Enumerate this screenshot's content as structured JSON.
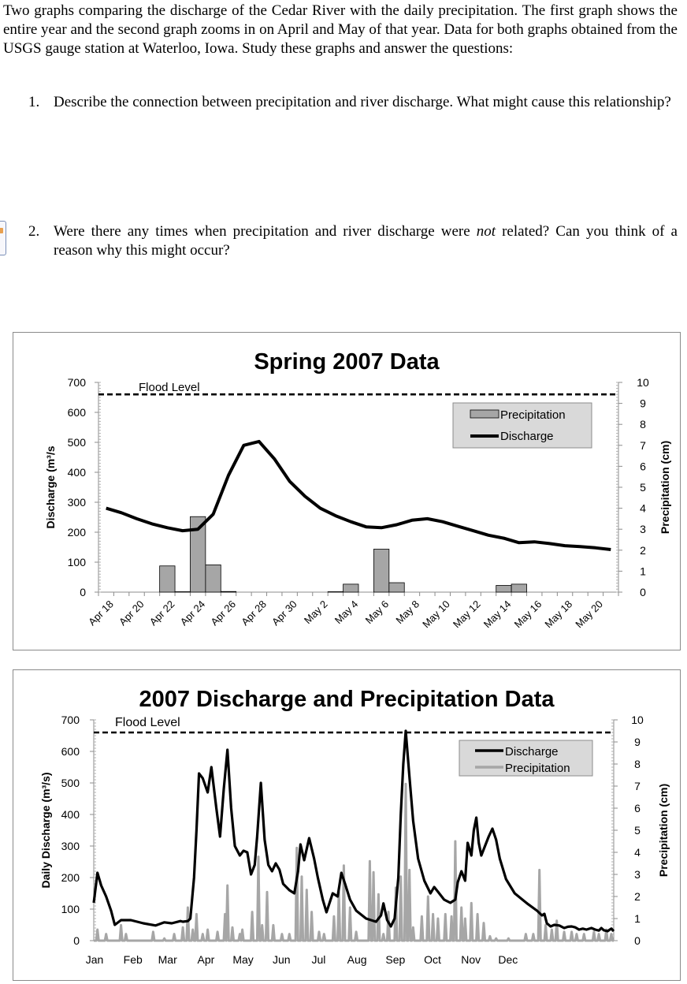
{
  "intro": {
    "text": "Two graphs comparing the discharge of the Cedar River with the daily precipitation. The first graph shows the entire year and the second graph zooms in on April and May of that year. Data for both graphs obtained from the USGS gauge station at Waterloo, Iowa. Study these graphs and answer the questions:"
  },
  "questions": [
    {
      "number": "1.",
      "text": "Describe the connection between precipitation and river discharge. What might cause this relationship?"
    },
    {
      "number": "2.",
      "text_before": "Were there any times when precipitation and river discharge were ",
      "text_emphasis": "not",
      "text_after": " related? Can you think of a reason why this might occur?"
    }
  ],
  "chart_data": [
    {
      "type": "bar+line",
      "title": "Spring 2007 Data",
      "ylabel_left": "Discharge (m³/s",
      "ylabel_right": "Precipitation (cm)",
      "yticks_left": [
        "0",
        "100",
        "200",
        "300",
        "400",
        "500",
        "600",
        "700"
      ],
      "yticks_right": [
        "0",
        "1",
        "2",
        "3",
        "4",
        "5",
        "6",
        "7",
        "8",
        "9",
        "10"
      ],
      "ylim_left": [
        0,
        700
      ],
      "ylim_right": [
        0,
        10
      ],
      "flood_level_label": "Flood Level",
      "flood_level": 660,
      "x_tick_labels": [
        "Apr 18",
        "Apr 20",
        "Apr 22",
        "Apr 24",
        "Apr 26",
        "Apr 28",
        "Apr 30",
        "May 2",
        "May 4",
        "May 6",
        "May 8",
        "May 10",
        "May 12",
        "May 14",
        "May 16",
        "May 18",
        "May 20"
      ],
      "days": [
        "Apr 18",
        "Apr 19",
        "Apr 20",
        "Apr 21",
        "Apr 22",
        "Apr 23",
        "Apr 24",
        "Apr 25",
        "Apr 26",
        "Apr 27",
        "Apr 28",
        "Apr 29",
        "Apr 30",
        "May 1",
        "May 2",
        "May 3",
        "May 4",
        "May 5",
        "May 6",
        "May 7",
        "May 8",
        "May 9",
        "May 10",
        "May 11",
        "May 12",
        "May 13",
        "May 14",
        "May 15",
        "May 16",
        "May 17",
        "May 18",
        "May 19",
        "May 20",
        "May 21"
      ],
      "legend": [
        "Precipitation",
        "Discharge"
      ],
      "legend_position": "top-right",
      "series": [
        {
          "name": "Precipitation",
          "kind": "bar",
          "axis": "right",
          "values": [
            0,
            0,
            0,
            0,
            1.25,
            0.02,
            3.6,
            1.3,
            0.03,
            0,
            0,
            0,
            0,
            0,
            0,
            0.02,
            0.38,
            0,
            2.05,
            0.45,
            0,
            0,
            0,
            0,
            0,
            0,
            0.32,
            0.38,
            0,
            0,
            0,
            0,
            0,
            0
          ]
        },
        {
          "name": "Discharge",
          "kind": "line",
          "axis": "left",
          "values": [
            280,
            265,
            245,
            228,
            215,
            205,
            210,
            260,
            390,
            490,
            503,
            445,
            370,
            320,
            280,
            255,
            235,
            218,
            215,
            225,
            240,
            245,
            235,
            220,
            205,
            190,
            180,
            165,
            168,
            162,
            155,
            152,
            148,
            142
          ]
        }
      ]
    },
    {
      "type": "line",
      "title": "2007 Discharge and Precipitation Data",
      "ylabel_left": "Daily Discharge (m³/s)",
      "ylabel_right": "Precipitation (cm)",
      "yticks_left": [
        "0",
        "100",
        "200",
        "300",
        "400",
        "500",
        "600",
        "700"
      ],
      "yticks_right": [
        "0",
        "1",
        "2",
        "3",
        "4",
        "5",
        "6",
        "7",
        "8",
        "9",
        "10"
      ],
      "ylim_left": [
        0,
        700
      ],
      "ylim_right": [
        0,
        10
      ],
      "flood_level_label": "Flood Level",
      "flood_level": 660,
      "x_tick_labels": [
        "Jan",
        "Feb",
        "Mar",
        "Apr",
        "May",
        "Jun",
        "Jul",
        "Aug",
        "Sep",
        "Oct",
        "Nov",
        "Dec"
      ],
      "legend": [
        "Discharge",
        "Precipitation"
      ],
      "legend_position": "top-right",
      "series": [
        {
          "name": "Discharge",
          "axis": "left",
          "points": [
            [
              0,
              120
            ],
            [
              3,
              215
            ],
            [
              6,
              175
            ],
            [
              10,
              140
            ],
            [
              14,
              95
            ],
            [
              17,
              50
            ],
            [
              22,
              65
            ],
            [
              30,
              65
            ],
            [
              40,
              55
            ],
            [
              50,
              48
            ],
            [
              57,
              58
            ],
            [
              63,
              55
            ],
            [
              70,
              62
            ],
            [
              72,
              60
            ],
            [
              76,
              62
            ],
            [
              78,
              70
            ],
            [
              81,
              200
            ],
            [
              83,
              350
            ],
            [
              85,
              530
            ],
            [
              88,
              515
            ],
            [
              92,
              470
            ],
            [
              95,
              550
            ],
            [
              99,
              420
            ],
            [
              102,
              330
            ],
            [
              105,
              480
            ],
            [
              108,
              605
            ],
            [
              111,
              420
            ],
            [
              114,
              300
            ],
            [
              118,
              270
            ],
            [
              121,
              285
            ],
            [
              124,
              280
            ],
            [
              127,
              210
            ],
            [
              130,
              240
            ],
            [
              132,
              330
            ],
            [
              135,
              500
            ],
            [
              138,
              320
            ],
            [
              141,
              240
            ],
            [
              144,
              220
            ],
            [
              147,
              245
            ],
            [
              150,
              225
            ],
            [
              153,
              180
            ],
            [
              158,
              160
            ],
            [
              162,
              150
            ],
            [
              165,
              220
            ],
            [
              167,
              305
            ],
            [
              170,
              255
            ],
            [
              174,
              325
            ],
            [
              178,
              260
            ],
            [
              181,
              200
            ],
            [
              185,
              130
            ],
            [
              188,
              90
            ],
            [
              193,
              150
            ],
            [
              197,
              140
            ],
            [
              200,
              215
            ],
            [
              203,
              180
            ],
            [
              207,
              130
            ],
            [
              212,
              95
            ],
            [
              220,
              70
            ],
            [
              228,
              60
            ],
            [
              232,
              80
            ],
            [
              234,
              118
            ],
            [
              237,
              65
            ],
            [
              240,
              45
            ],
            [
              243,
              70
            ],
            [
              246,
              200
            ],
            [
              248,
              400
            ],
            [
              250,
              560
            ],
            [
              252,
              665
            ],
            [
              255,
              520
            ],
            [
              258,
              380
            ],
            [
              262,
              260
            ],
            [
              267,
              190
            ],
            [
              272,
              150
            ],
            [
              275,
              170
            ],
            [
              278,
              155
            ],
            [
              283,
              130
            ],
            [
              288,
              120
            ],
            [
              292,
              130
            ],
            [
              294,
              185
            ],
            [
              297,
              220
            ],
            [
              300,
              190
            ],
            [
              302,
              310
            ],
            [
              305,
              270
            ],
            [
              307,
              350
            ],
            [
              309,
              390
            ],
            [
              311,
              310
            ],
            [
              313,
              270
            ],
            [
              316,
              300
            ],
            [
              319,
              330
            ],
            [
              322,
              355
            ],
            [
              325,
              320
            ],
            [
              328,
              260
            ],
            [
              333,
              195
            ],
            [
              340,
              150
            ],
            [
              350,
              118
            ],
            [
              358,
              95
            ],
            [
              362,
              80
            ],
            [
              364,
              85
            ],
            [
              366,
              55
            ],
            [
              369,
              45
            ],
            [
              372,
              50
            ],
            [
              376,
              48
            ],
            [
              380,
              40
            ],
            [
              383,
              44
            ],
            [
              386,
              45
            ],
            [
              389,
              42
            ],
            [
              392,
              35
            ],
            [
              395,
              38
            ],
            [
              398,
              35
            ],
            [
              402,
              40
            ],
            [
              405,
              35
            ],
            [
              408,
              32
            ],
            [
              410,
              40
            ],
            [
              412,
              33
            ],
            [
              415,
              30
            ],
            [
              418,
              38
            ],
            [
              420,
              30
            ]
          ]
        },
        {
          "name": "Precipitation",
          "axis": "right",
          "spikes": [
            [
              3,
              0.5
            ],
            [
              10,
              0.3
            ],
            [
              22,
              0.7
            ],
            [
              26,
              0.3
            ],
            [
              48,
              0.4
            ],
            [
              57,
              0.1
            ],
            [
              65,
              0.3
            ],
            [
              72,
              0.6
            ],
            [
              76,
              1.5
            ],
            [
              80,
              0.5
            ],
            [
              83,
              1.2
            ],
            [
              88,
              0.3
            ],
            [
              92,
              0.5
            ],
            [
              100,
              0.4
            ],
            [
              106,
              1.2
            ],
            [
              108,
              2.5
            ],
            [
              112,
              0.6
            ],
            [
              118,
              0.3
            ],
            [
              120,
              0.5
            ],
            [
              128,
              1.3
            ],
            [
              133,
              3.8
            ],
            [
              136,
              0.7
            ],
            [
              140,
              2.2
            ],
            [
              145,
              0.7
            ],
            [
              152,
              0.3
            ],
            [
              158,
              0.3
            ],
            [
              164,
              4.2
            ],
            [
              168,
              2.9
            ],
            [
              172,
              2.3
            ],
            [
              176,
              1.3
            ],
            [
              182,
              0.4
            ],
            [
              186,
              0.3
            ],
            [
              194,
              1.1
            ],
            [
              198,
              2.2
            ],
            [
              202,
              3.4
            ],
            [
              207,
              1.5
            ],
            [
              212,
              0.4
            ],
            [
              223,
              3.6
            ],
            [
              226,
              3.1
            ],
            [
              230,
              2.1
            ],
            [
              234,
              0.3
            ],
            [
              238,
              1.3
            ],
            [
              244,
              2.4
            ],
            [
              248,
              2.9
            ],
            [
              252,
              7.1
            ],
            [
              255,
              3.2
            ],
            [
              258,
              0.6
            ],
            [
              265,
              1.1
            ],
            [
              270,
              2.0
            ],
            [
              274,
              1.2
            ],
            [
              278,
              1.0
            ],
            [
              284,
              1.2
            ],
            [
              289,
              1.1
            ],
            [
              292,
              4.5
            ],
            [
              297,
              1.5
            ],
            [
              300,
              1.0
            ],
            [
              305,
              1.7
            ],
            [
              310,
              1.2
            ],
            [
              315,
              0.8
            ],
            [
              320,
              0.2
            ],
            [
              325,
              0.1
            ],
            [
              335,
              0.1
            ],
            [
              349,
              0.3
            ],
            [
              355,
              0.3
            ],
            [
              360,
              3.2
            ],
            [
              365,
              0.7
            ],
            [
              370,
              0.5
            ],
            [
              374,
              0.9
            ],
            [
              380,
              0.4
            ],
            [
              386,
              0.4
            ],
            [
              390,
              0.3
            ],
            [
              396,
              0.3
            ],
            [
              404,
              0.4
            ],
            [
              408,
              0.3
            ],
            [
              414,
              0.5
            ],
            [
              418,
              0.3
            ]
          ]
        }
      ]
    }
  ]
}
